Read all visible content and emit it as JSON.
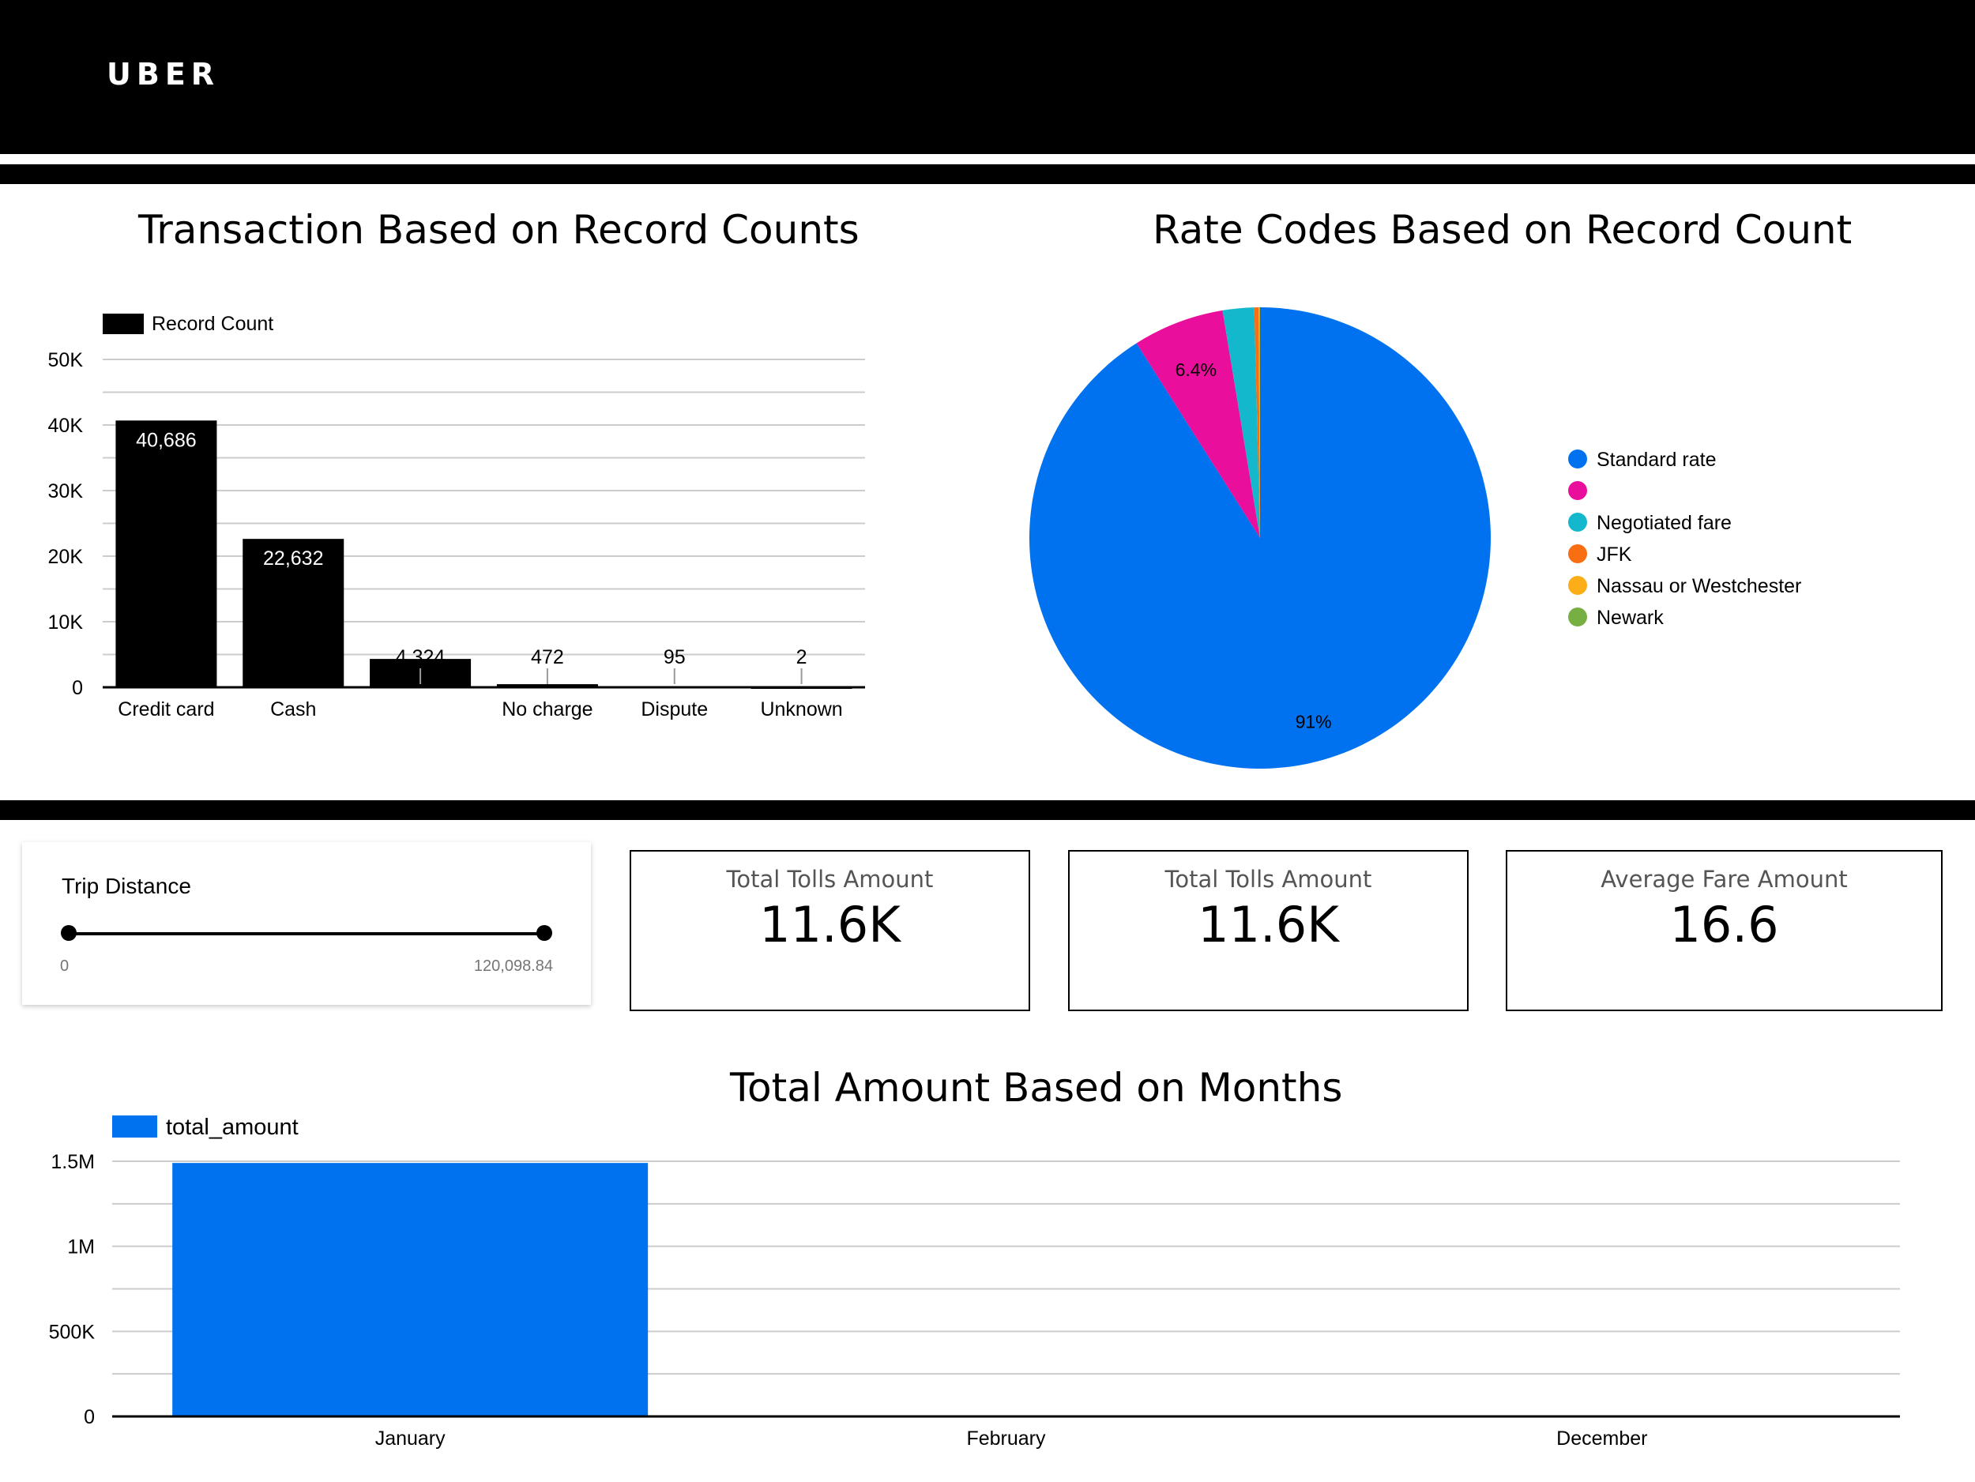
{
  "header": {
    "logo": "UBER"
  },
  "chart_data": [
    {
      "type": "bar",
      "title": "Transaction Based on Record Counts",
      "legend": "Record Count",
      "categories": [
        "Credit card",
        "Cash",
        "",
        "No charge",
        "Dispute",
        "Unknown"
      ],
      "values": [
        40686,
        22632,
        4324,
        472,
        95,
        2
      ],
      "value_labels": [
        "40,686",
        "22,632",
        "4,324",
        "472",
        "95",
        "2"
      ],
      "yticks": [
        "0",
        "10K",
        "20K",
        "30K",
        "40K",
        "50K"
      ],
      "ylim": [
        0,
        50000
      ],
      "color": "#000000"
    },
    {
      "type": "pie",
      "title": "Rate Codes Based on Record Count",
      "legend_position": "right",
      "slices": [
        {
          "name": "Standard rate",
          "value": 91.0,
          "label": "91%",
          "color": "#0072ef"
        },
        {
          "name": "",
          "value": 6.4,
          "label": "6.4%",
          "color": "#ea0e9c"
        },
        {
          "name": "Negotiated fare",
          "value": 2.2,
          "label": "",
          "color": "#13b8cc"
        },
        {
          "name": "JFK",
          "value": 0.3,
          "label": "",
          "color": "#f76e13"
        },
        {
          "name": "Nassau or Westchester",
          "value": 0.07,
          "label": "",
          "color": "#fbae18"
        },
        {
          "name": "Newark",
          "value": 0.03,
          "label": "",
          "color": "#76b043"
        }
      ]
    },
    {
      "type": "bar",
      "title": "Total Amount Based on Months",
      "legend": "total_amount",
      "categories": [
        "January",
        "February",
        "December"
      ],
      "values": [
        1490000,
        0,
        0
      ],
      "yticks": [
        "0",
        "500K",
        "1M",
        "1.5M"
      ],
      "ylim": [
        0,
        1500000
      ],
      "color": "#0072ef"
    }
  ],
  "trip_distance": {
    "label": "Trip Distance",
    "min": "0",
    "max": "120,098.84"
  },
  "kpis": [
    {
      "label": "Total Tolls Amount",
      "value": "11.6K"
    },
    {
      "label": "Total Tolls Amount",
      "value": "11.6K"
    },
    {
      "label": "Average Fare Amount",
      "value": "16.6"
    }
  ]
}
